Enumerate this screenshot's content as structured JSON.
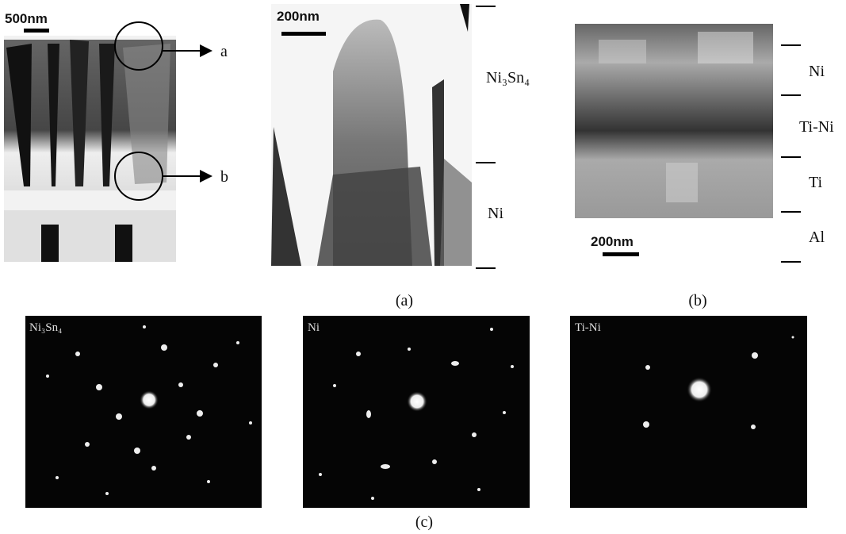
{
  "figure": {
    "panel_a": {
      "left_scale": "500nm",
      "marker_a": "a",
      "marker_b": "b",
      "right_scale": "200nm",
      "layers": [
        "Ni₃Sn₄",
        "Ni"
      ],
      "caption": "(a)"
    },
    "panel_b": {
      "layers": [
        "Ni",
        "Ti-Ni",
        "Ti",
        "Al"
      ],
      "scale": "200nm",
      "caption": "(b)"
    },
    "panel_c": {
      "patterns": [
        "Ni₃Sn₄",
        "Ni",
        "Ti-Ni"
      ],
      "caption": "(c)"
    }
  }
}
